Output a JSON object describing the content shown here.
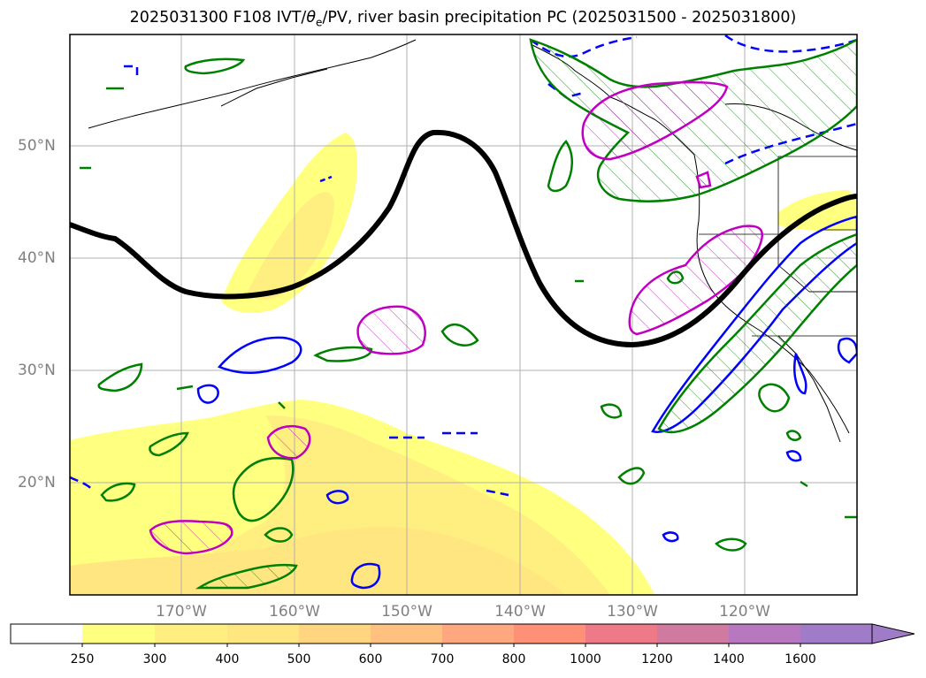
{
  "title": {
    "prefix": "2025031300 F108 IVT/",
    "theta": "θ",
    "theta_sub": "e",
    "suffix": "/PV, river basin precipitation PC (2025031500 - 2025031800)"
  },
  "lat_labels": [
    "50°N",
    "40°N",
    "30°N",
    "20°N"
  ],
  "lon_labels": [
    "170°W",
    "160°W",
    "150°W",
    "140°W",
    "130°W",
    "120°W"
  ],
  "colorbar": {
    "ticks": [
      "250",
      "300",
      "400",
      "500",
      "600",
      "700",
      "800",
      "1000",
      "1200",
      "1400",
      "1600"
    ],
    "colors": [
      "#ffffff",
      "#ffff80",
      "#ffee80",
      "#ffe680",
      "#ffd580",
      "#ffc080",
      "#ffa880",
      "#ff9078",
      "#ee7a88",
      "#d07aa0",
      "#b878c0",
      "#a07cc8"
    ]
  },
  "legend_colors": {
    "pv_contour": "#000000",
    "theta_e_blue": "#0000ff",
    "green": "#008000",
    "magenta": "#c000c0"
  }
}
